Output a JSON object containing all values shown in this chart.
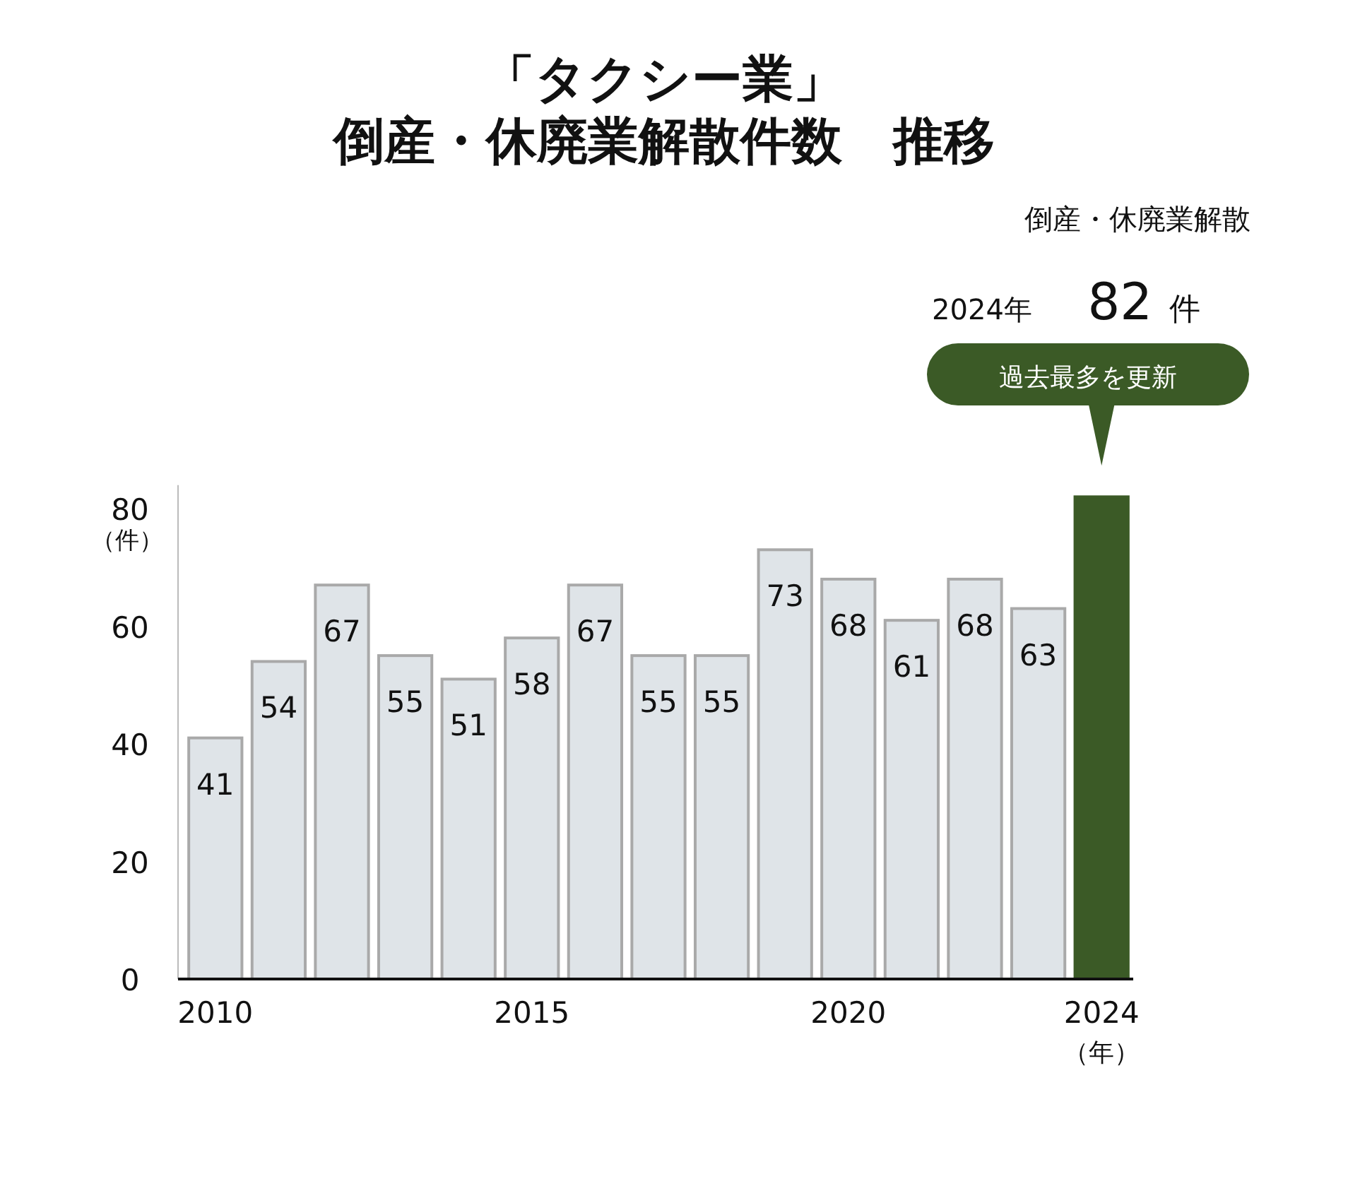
{
  "chart_data": {
    "type": "bar",
    "title": "「タクシー業」",
    "subtitle": "倒産・休廃業解散件数　推移",
    "xlabel": "（年）",
    "ylabel": "（件）",
    "categories": [
      "2010",
      null,
      null,
      null,
      null,
      "2015",
      null,
      null,
      null,
      null,
      "2020",
      null,
      null,
      null,
      "2024"
    ],
    "values": [
      41,
      54,
      67,
      55,
      51,
      58,
      67,
      55,
      55,
      73,
      68,
      61,
      68,
      63,
      82
    ],
    "colors": [
      "#dfe4e8",
      "#dfe4e8",
      "#dfe4e8",
      "#dfe4e8",
      "#dfe4e8",
      "#dfe4e8",
      "#dfe4e8",
      "#dfe4e8",
      "#dfe4e8",
      "#dfe4e8",
      "#dfe4e8",
      "#dfe4e8",
      "#dfe4e8",
      "#dfe4e8",
      "#3b5a26"
    ],
    "value_labels": [
      "41",
      "54",
      "67",
      "55",
      "51",
      "58",
      "67",
      "55",
      "55",
      "73",
      "68",
      "61",
      "68",
      "63",
      null
    ],
    "ylim": [
      0,
      84
    ],
    "yticks": [
      0,
      20,
      40,
      60,
      80
    ],
    "grid": false,
    "annotations": [
      "倒産・休廃業解散",
      "2024年",
      "82 件",
      "過去最多を更新"
    ]
  }
}
